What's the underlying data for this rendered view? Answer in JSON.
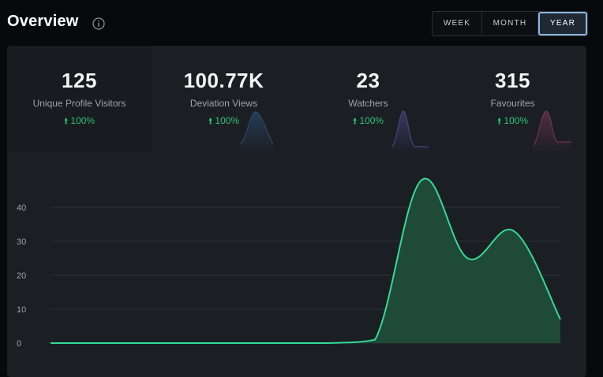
{
  "header": {
    "title": "Overview",
    "info_icon": "info-circle-icon"
  },
  "range_options": [
    "WEEK",
    "MONTH",
    "YEAR"
  ],
  "selected_range": "YEAR",
  "stats": [
    {
      "value": "125",
      "label": "Unique Profile Visitors",
      "delta": "100%",
      "delta_icon": "arrow-up-icon"
    },
    {
      "value": "100.77K",
      "label": "Deviation Views",
      "delta": "100%",
      "delta_icon": "arrow-up-icon",
      "spark_color": "#2c4f78"
    },
    {
      "value": "23",
      "label": "Watchers",
      "delta": "100%",
      "delta_icon": "arrow-up-icon",
      "spark_color": "#4d4a8a"
    },
    {
      "value": "315",
      "label": "Favourites",
      "delta": "100%",
      "delta_icon": "arrow-up-icon",
      "spark_color": "#7a3858"
    }
  ],
  "colors": {
    "accent": "#2ec07a",
    "line": "#33d996",
    "area": "#1f4a38",
    "background": "#07090b",
    "panel": "#1b1f24"
  },
  "chart_data": {
    "type": "area",
    "x": [
      0,
      1,
      2,
      3,
      4,
      5,
      6,
      7,
      8,
      9,
      10,
      11
    ],
    "values": [
      0,
      0,
      0,
      0,
      0,
      0,
      0,
      1,
      48,
      25,
      33,
      7
    ],
    "ylim": [
      0,
      50
    ],
    "y_ticks": [
      0,
      10,
      20,
      30,
      40
    ],
    "grid": true,
    "title": "",
    "xlabel": "",
    "ylabel": ""
  }
}
